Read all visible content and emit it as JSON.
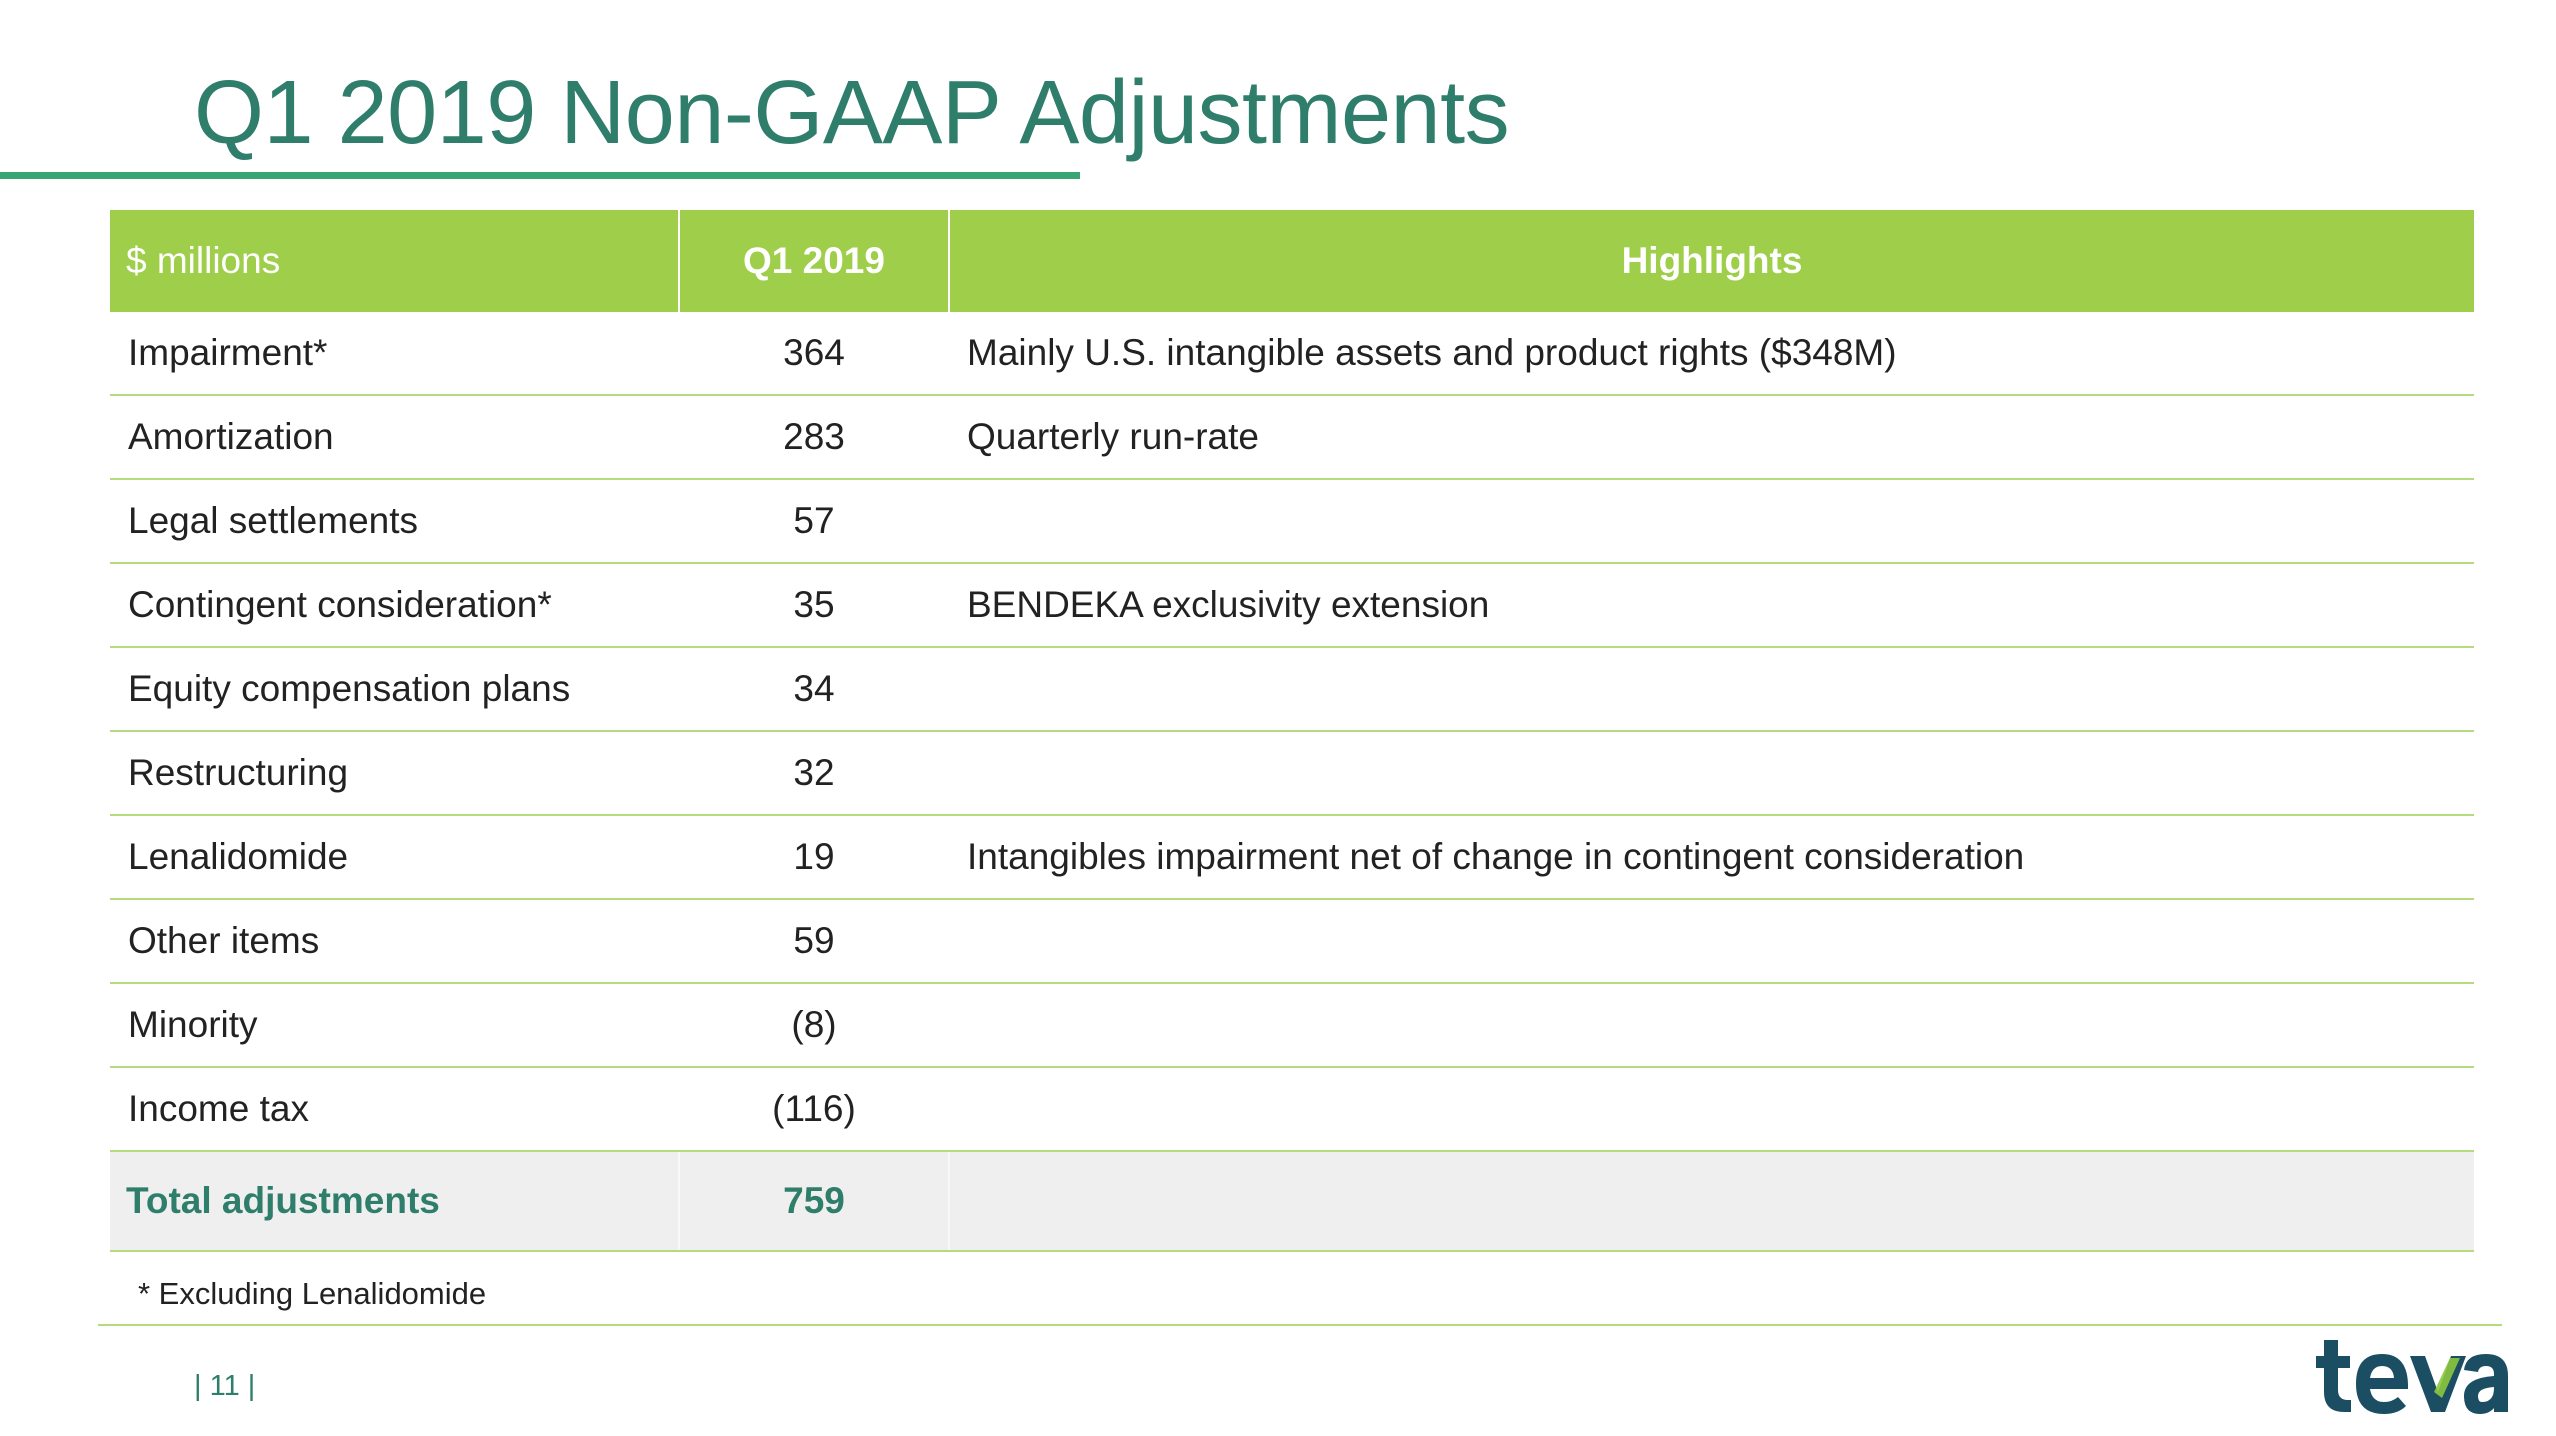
{
  "slide": {
    "title": "Q1 2019 Non-GAAP Adjustments",
    "footnote": "* Excluding Lenalidomide",
    "page_number": "| 11 |",
    "logo_text": "teva"
  },
  "table": {
    "headers": {
      "label": "$ millions",
      "value": "Q1 2019",
      "highlights": "Highlights"
    },
    "rows": [
      {
        "label": "Impairment*",
        "value": "364",
        "highlight": "Mainly U.S. intangible assets and product rights ($348M)"
      },
      {
        "label": "Amortization",
        "value": "283",
        "highlight": "Quarterly run-rate"
      },
      {
        "label": "Legal settlements",
        "value": "57",
        "highlight": ""
      },
      {
        "label": "Contingent consideration*",
        "value": "35",
        "highlight": "BENDEKA exclusivity extension"
      },
      {
        "label": "Equity compensation plans",
        "value": "34",
        "highlight": ""
      },
      {
        "label": "Restructuring",
        "value": "32",
        "highlight": ""
      },
      {
        "label": "Lenalidomide",
        "value": "19",
        "highlight": "Intangibles impairment net of change in contingent consideration"
      },
      {
        "label": "Other items",
        "value": "59",
        "highlight": ""
      },
      {
        "label": "Minority",
        "value": "(8)",
        "highlight": ""
      },
      {
        "label": "Income tax",
        "value": "(116)",
        "highlight": ""
      }
    ],
    "total": {
      "label": "Total adjustments",
      "value": "759",
      "highlight": ""
    }
  },
  "colors": {
    "title": "#2f7d6b",
    "header_bg": "#9fce4a",
    "rule": "#3aa574",
    "row_border": "#b5db7e",
    "total_bg": "#efefef",
    "logo_dark": "#1c4e63",
    "logo_green": "#8dc63f"
  }
}
